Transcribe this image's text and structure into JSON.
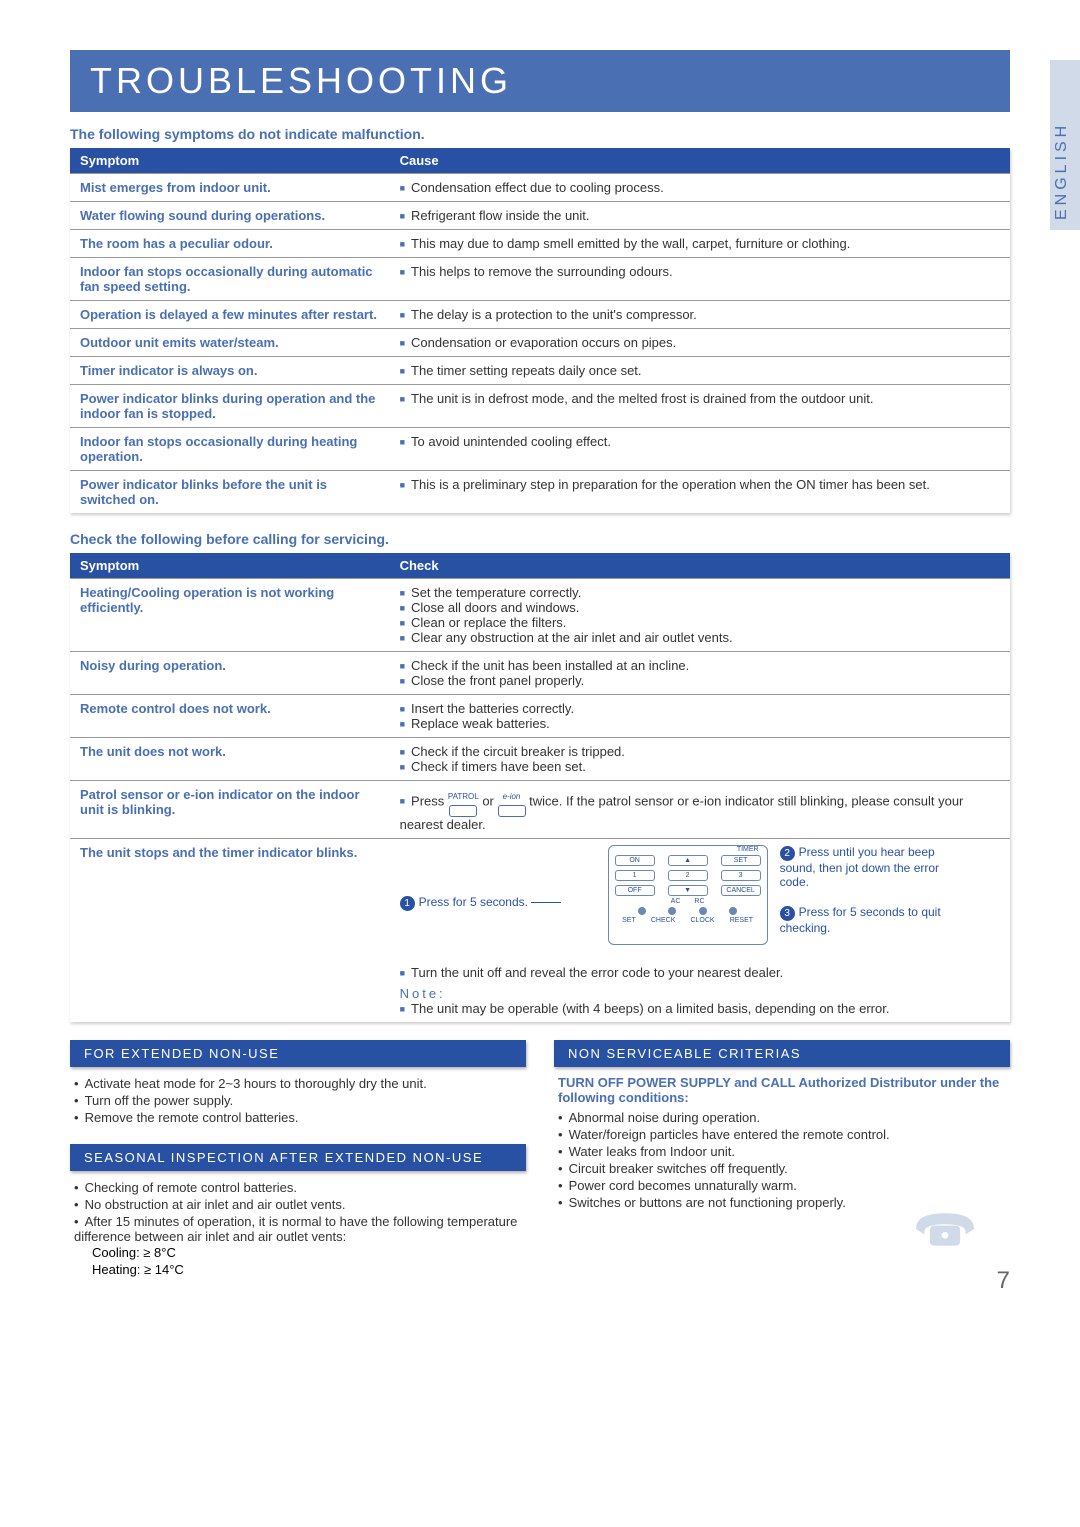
{
  "colors": {
    "primary": "#2951a3",
    "accent": "#4a6fb3",
    "tab_bg": "#d0dae9",
    "text": "#333333",
    "border": "#999999"
  },
  "title": "TROUBLESHOOTING",
  "side_tab": "ENGLISH",
  "page_number": "7",
  "section1": {
    "heading": "The following symptoms do not indicate malfunction.",
    "col_symptom": "Symptom",
    "col_cause": "Cause",
    "rows": [
      {
        "symptom": "Mist emerges from indoor unit.",
        "causes": [
          "Condensation effect due to cooling process."
        ]
      },
      {
        "symptom": "Water flowing sound during operations.",
        "causes": [
          "Refrigerant flow inside the unit."
        ]
      },
      {
        "symptom": "The room has a peculiar odour.",
        "causes": [
          "This may due to damp smell emitted by the wall, carpet, furniture or clothing."
        ]
      },
      {
        "symptom": "Indoor fan stops occasionally during automatic fan speed setting.",
        "causes": [
          "This helps to remove the surrounding odours."
        ]
      },
      {
        "symptom": "Operation is delayed a few minutes after restart.",
        "causes": [
          "The delay is a protection to the unit's compressor."
        ]
      },
      {
        "symptom": "Outdoor unit emits water/steam.",
        "causes": [
          "Condensation or evaporation occurs on pipes."
        ]
      },
      {
        "symptom": "Timer indicator is always on.",
        "causes": [
          "The timer setting repeats daily once set."
        ]
      },
      {
        "symptom": "Power indicator blinks during operation and the indoor fan is stopped.",
        "causes": [
          "The unit is in defrost mode, and the melted frost is drained from the outdoor unit."
        ]
      },
      {
        "symptom": "Indoor fan stops occasionally during heating operation.",
        "causes": [
          "To avoid unintended cooling effect."
        ]
      },
      {
        "symptom": "Power indicator blinks before the unit is switched on.",
        "causes": [
          "This is a preliminary step in preparation for the operation when the ON timer has been set."
        ]
      }
    ]
  },
  "section2": {
    "heading": "Check the following before calling for servicing.",
    "col_symptom": "Symptom",
    "col_check": "Check",
    "rows": [
      {
        "symptom": "Heating/Cooling operation is not working efficiently.",
        "checks": [
          "Set the temperature correctly.",
          "Close all doors and windows.",
          "Clean or replace the filters.",
          "Clear any obstruction at the air inlet and air outlet vents."
        ]
      },
      {
        "symptom": "Noisy during operation.",
        "checks": [
          "Check if the unit has been installed at an incline.",
          "Close the front panel properly."
        ]
      },
      {
        "symptom": "Remote control does not work.",
        "checks": [
          "Insert the batteries correctly.",
          "Replace weak batteries."
        ]
      },
      {
        "symptom": "The unit does not work.",
        "checks": [
          "Check if the circuit breaker is tripped.",
          "Check if timers have been set."
        ]
      }
    ],
    "patrol": {
      "symptom": "Patrol sensor or e-ion indicator on the indoor unit is blinking.",
      "prefix": "Press",
      "btn1_top": "PATROL",
      "or": "or",
      "btn2_top": "e-ion",
      "suffix": "twice. If the patrol sensor or e-ion indicator still blinking, please consult your nearest dealer."
    },
    "timer_row": {
      "symptom": "The unit stops and the timer indicator blinks.",
      "call1": "Press for 5 seconds.",
      "call2": "Press until you hear beep sound, then jot down the error code.",
      "call3": "Press for 5 seconds to quit checking.",
      "bullets": [
        "Turn the unit off and reveal the error code to your nearest dealer."
      ],
      "note_label": "Note:",
      "note_bullets": [
        "The unit may be operable (with 4 beeps) on a limited basis, depending on the error."
      ]
    },
    "remote": {
      "timer": "TIMER",
      "on": "ON",
      "up": "▲",
      "set": "SET",
      "n1": "1",
      "n2": "2",
      "n3": "3",
      "off": "OFF",
      "down": "▼",
      "cancel": "CANCEL",
      "ac": "AC",
      "rc": "RC",
      "set2": "SET",
      "check": "CHECK",
      "clock": "CLOCK",
      "reset": "RESET"
    }
  },
  "extended": {
    "title": "FOR EXTENDED NON-USE",
    "items": [
      "Activate heat mode for 2~3 hours to thoroughly dry the unit.",
      "Turn off the power supply.",
      "Remove the remote control batteries."
    ]
  },
  "seasonal": {
    "title": "SEASONAL INSPECTION AFTER EXTENDED NON-USE",
    "items": [
      "Checking of remote control batteries.",
      "No obstruction at air inlet and air outlet vents.",
      "After 15 minutes of operation, it is normal to have the following temperature difference between air inlet and air outlet vents:"
    ],
    "cooling": "Cooling: ≥ 8°C",
    "heating": "Heating: ≥ 14°C"
  },
  "nonservice": {
    "title": "NON SERVICEABLE CRITERIAS",
    "lead": "TURN OFF POWER SUPPLY and CALL Authorized Distributor under the following conditions:",
    "items": [
      "Abnormal noise during operation.",
      "Water/foreign particles have entered the remote control.",
      "Water leaks from Indoor unit.",
      "Circuit breaker switches off frequently.",
      "Power cord becomes unnaturally warm.",
      "Switches or buttons are not functioning properly."
    ]
  }
}
